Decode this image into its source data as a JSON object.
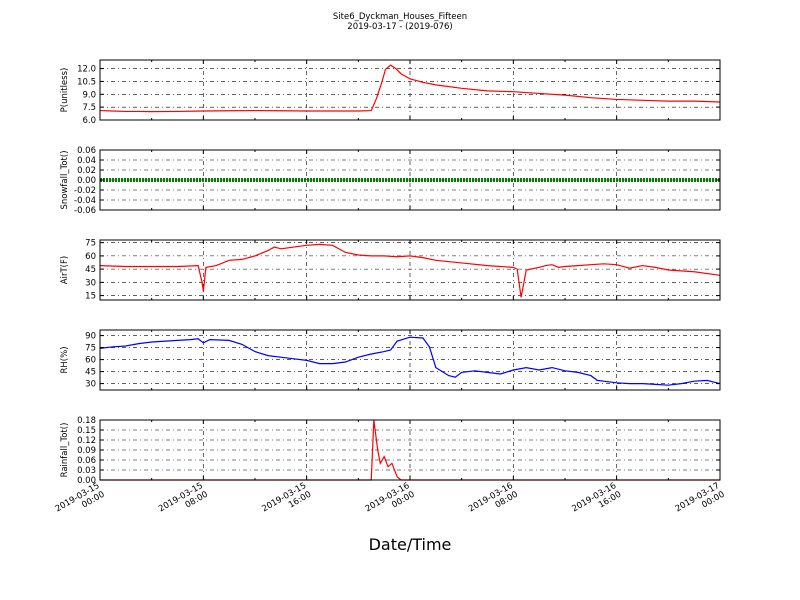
{
  "chart_data": {
    "type": "line",
    "title": "Site6_Dyckman_Houses_Fifteen",
    "subtitle": "2019-03-17 - (2019-076)",
    "xlabel": "Date/Time",
    "x_ticks": [
      [
        "2019-03-15",
        "00:00"
      ],
      [
        "2019-03-15",
        "08:00"
      ],
      [
        "2019-03-15",
        "16:00"
      ],
      [
        "2019-03-16",
        "00:00"
      ],
      [
        "2019-03-16",
        "08:00"
      ],
      [
        "2019-03-16",
        "16:00"
      ],
      [
        "2019-03-17",
        "00:00"
      ]
    ],
    "x_range_hours": [
      0,
      48
    ],
    "grid": true,
    "panels": [
      {
        "ylabel": "P(unitless)",
        "ylim": [
          6.0,
          13.0
        ],
        "yticks": [
          "6.0",
          "7.5",
          "9.0",
          "10.5",
          "12.0"
        ],
        "ytick_values": [
          6.0,
          7.5,
          9.0,
          10.5,
          12.0
        ],
        "color": "#ff0000",
        "points": [
          [
            0,
            7.1
          ],
          [
            1,
            7.05
          ],
          [
            2,
            7.0
          ],
          [
            3,
            7.0
          ],
          [
            4,
            6.98
          ],
          [
            6,
            7.0
          ],
          [
            8,
            7.05
          ],
          [
            10,
            7.08
          ],
          [
            12,
            7.1
          ],
          [
            14,
            7.08
          ],
          [
            16,
            7.05
          ],
          [
            18,
            7.05
          ],
          [
            20,
            7.05
          ],
          [
            21,
            7.1
          ],
          [
            21.4,
            8.5
          ],
          [
            21.8,
            10.3
          ],
          [
            22.1,
            11.9
          ],
          [
            22.5,
            12.4
          ],
          [
            22.9,
            12.0
          ],
          [
            23.3,
            11.4
          ],
          [
            24,
            10.8
          ],
          [
            25,
            10.4
          ],
          [
            26,
            10.1
          ],
          [
            28,
            9.7
          ],
          [
            30,
            9.4
          ],
          [
            32,
            9.3
          ],
          [
            34,
            9.1
          ],
          [
            36,
            8.9
          ],
          [
            38,
            8.6
          ],
          [
            40,
            8.4
          ],
          [
            42,
            8.3
          ],
          [
            44,
            8.2
          ],
          [
            46,
            8.2
          ],
          [
            48,
            8.1
          ]
        ]
      },
      {
        "ylabel": "Snowfall_Tot()",
        "ylim": [
          -0.06,
          0.06
        ],
        "yticks": [
          "-0.06",
          "-0.04",
          "-0.02",
          "0.00",
          "0.02",
          "0.04",
          "0.06"
        ],
        "ytick_values": [
          -0.06,
          -0.04,
          -0.02,
          0.0,
          0.02,
          0.04,
          0.06
        ],
        "color": "#008000",
        "points": [
          [
            0,
            0
          ],
          [
            48,
            0
          ]
        ]
      },
      {
        "ylabel": "AirT(F)",
        "ylim": [
          10,
          78
        ],
        "yticks": [
          "15",
          "30",
          "45",
          "60",
          "75"
        ],
        "ytick_values": [
          15,
          30,
          45,
          60,
          75
        ],
        "color": "#ff0000",
        "points": [
          [
            0,
            49
          ],
          [
            2,
            48
          ],
          [
            4,
            48
          ],
          [
            6,
            48
          ],
          [
            7.6,
            49
          ],
          [
            7.9,
            30
          ],
          [
            8.0,
            20
          ],
          [
            8.2,
            47
          ],
          [
            9,
            49
          ],
          [
            10,
            55
          ],
          [
            11,
            56
          ],
          [
            12,
            60
          ],
          [
            13,
            66
          ],
          [
            13.5,
            70
          ],
          [
            14,
            68
          ],
          [
            15,
            70
          ],
          [
            16,
            72
          ],
          [
            17,
            73
          ],
          [
            18,
            72
          ],
          [
            19,
            64
          ],
          [
            20,
            61
          ],
          [
            21,
            60
          ],
          [
            22,
            60
          ],
          [
            23,
            59
          ],
          [
            24,
            60
          ],
          [
            25,
            58
          ],
          [
            26,
            55
          ],
          [
            28,
            52
          ],
          [
            30,
            49
          ],
          [
            32,
            47
          ],
          [
            32.3,
            45
          ],
          [
            32.6,
            13
          ],
          [
            33,
            44
          ],
          [
            34,
            47
          ],
          [
            34.5,
            49
          ],
          [
            35,
            50
          ],
          [
            35.5,
            47
          ],
          [
            36,
            48
          ],
          [
            37,
            49
          ],
          [
            38,
            50
          ],
          [
            39,
            51
          ],
          [
            40,
            50
          ],
          [
            40.5,
            48
          ],
          [
            41,
            46
          ],
          [
            42,
            49
          ],
          [
            43,
            47
          ],
          [
            44,
            44
          ],
          [
            46,
            42
          ],
          [
            48,
            38
          ]
        ]
      },
      {
        "ylabel": "RH(%)",
        "ylim": [
          22,
          97
        ],
        "yticks": [
          "30",
          "45",
          "60",
          "75",
          "90"
        ],
        "ytick_values": [
          30,
          45,
          60,
          75,
          90
        ],
        "color": "#0000ff",
        "points": [
          [
            0,
            74
          ],
          [
            1,
            76
          ],
          [
            2,
            77
          ],
          [
            3,
            80
          ],
          [
            4,
            82
          ],
          [
            6,
            84
          ],
          [
            7,
            85
          ],
          [
            7.6,
            86
          ],
          [
            8,
            81
          ],
          [
            8.5,
            85
          ],
          [
            10,
            84
          ],
          [
            11,
            79
          ],
          [
            12,
            70
          ],
          [
            13,
            65
          ],
          [
            14,
            63
          ],
          [
            15,
            61
          ],
          [
            16,
            59
          ],
          [
            17,
            55
          ],
          [
            18,
            55
          ],
          [
            19,
            57
          ],
          [
            20,
            63
          ],
          [
            21,
            67
          ],
          [
            22,
            70
          ],
          [
            22.5,
            72
          ],
          [
            23,
            83
          ],
          [
            24,
            88
          ],
          [
            25,
            87
          ],
          [
            25.5,
            76
          ],
          [
            26,
            50
          ],
          [
            27,
            40
          ],
          [
            27.5,
            38
          ],
          [
            28,
            44
          ],
          [
            29,
            46
          ],
          [
            30,
            44
          ],
          [
            31,
            42
          ],
          [
            32,
            47
          ],
          [
            33,
            50
          ],
          [
            34,
            47
          ],
          [
            35,
            50
          ],
          [
            36,
            46
          ],
          [
            37,
            44
          ],
          [
            38,
            40
          ],
          [
            38.5,
            34
          ],
          [
            39,
            33
          ],
          [
            40,
            31
          ],
          [
            41,
            30
          ],
          [
            42,
            30
          ],
          [
            43,
            29
          ],
          [
            44,
            28
          ],
          [
            45,
            30
          ],
          [
            46,
            33
          ],
          [
            47,
            34
          ],
          [
            48,
            30
          ]
        ]
      },
      {
        "ylabel": "Rainfall_Tot()",
        "ylim": [
          0.0,
          0.18
        ],
        "yticks": [
          "0.00",
          "0.03",
          "0.06",
          "0.09",
          "0.12",
          "0.15",
          "0.18"
        ],
        "ytick_values": [
          0.0,
          0.03,
          0.06,
          0.09,
          0.12,
          0.15,
          0.18
        ],
        "color": "#ff0000",
        "points": [
          [
            0,
            0
          ],
          [
            21,
            0
          ],
          [
            21.2,
            0.18
          ],
          [
            21.5,
            0.09
          ],
          [
            21.7,
            0.05
          ],
          [
            22.0,
            0.07
          ],
          [
            22.3,
            0.04
          ],
          [
            22.6,
            0.05
          ],
          [
            23.0,
            0.01
          ],
          [
            23.3,
            0
          ],
          [
            48,
            0
          ]
        ]
      }
    ]
  }
}
